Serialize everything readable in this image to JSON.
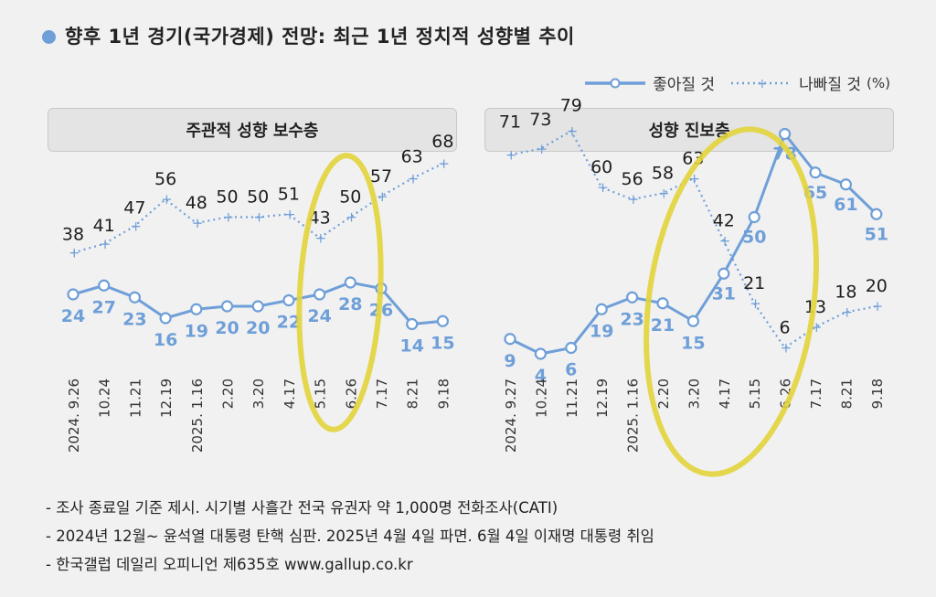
{
  "title": "향후 1년 경기(국가경제) 전망: 최근 1년 정치적 성향별 추이",
  "legend": {
    "good_label": "좋아질 것",
    "bad_label": "나빠질 것",
    "unit": "(%)"
  },
  "colors": {
    "good": "#6f9fd8",
    "bad": "#6f9fd8",
    "highlight": "#e2d43c"
  },
  "chart_data": [
    {
      "type": "line",
      "title": "주관적 성향 보수층",
      "categories": [
        "2024. 9.26",
        "10.24",
        "11.21",
        "12.19",
        "2025. 1.16",
        "2.20",
        "3.20",
        "4.17",
        "5.15",
        "6.26",
        "7.17",
        "8.21",
        "9.18"
      ],
      "series": [
        {
          "name": "좋아질 것",
          "values": [
            24,
            27,
            23,
            16,
            19,
            20,
            20,
            22,
            24,
            28,
            26,
            14,
            15
          ]
        },
        {
          "name": "나빠질 것",
          "values": [
            38,
            41,
            47,
            56,
            48,
            50,
            50,
            51,
            43,
            50,
            57,
            63,
            68
          ]
        }
      ],
      "ylim": [
        0,
        80
      ]
    },
    {
      "type": "line",
      "title": "성향 진보층",
      "categories": [
        "2024. 9.27",
        "10.24",
        "11.21",
        "12.19",
        "2025. 1.16",
        "2.20",
        "3.20",
        "4.17",
        "5.15",
        "6.26",
        "7.17",
        "8.21",
        "9.18"
      ],
      "series": [
        {
          "name": "좋아질 것",
          "values": [
            9,
            4,
            6,
            19,
            23,
            21,
            15,
            31,
            50,
            78,
            65,
            61,
            51
          ]
        },
        {
          "name": "나빠질 것",
          "values": [
            71,
            73,
            79,
            60,
            56,
            58,
            63,
            42,
            21,
            6,
            13,
            18,
            20
          ]
        }
      ],
      "ylim": [
        0,
        80
      ]
    }
  ],
  "notes": [
    "- 조사 종료일 기준 제시. 시기별 사흘간 전국 유권자 약 1,000명 전화조사(CATI)",
    "- 2024년 12월~ 윤석열 대통령 탄핵 심판. 2025년 4월 4일 파면. 6월 4일 이재명 대통령 취임",
    "- 한국갤럽 데일리 오피니언 제635호 www.gallup.co.kr"
  ]
}
